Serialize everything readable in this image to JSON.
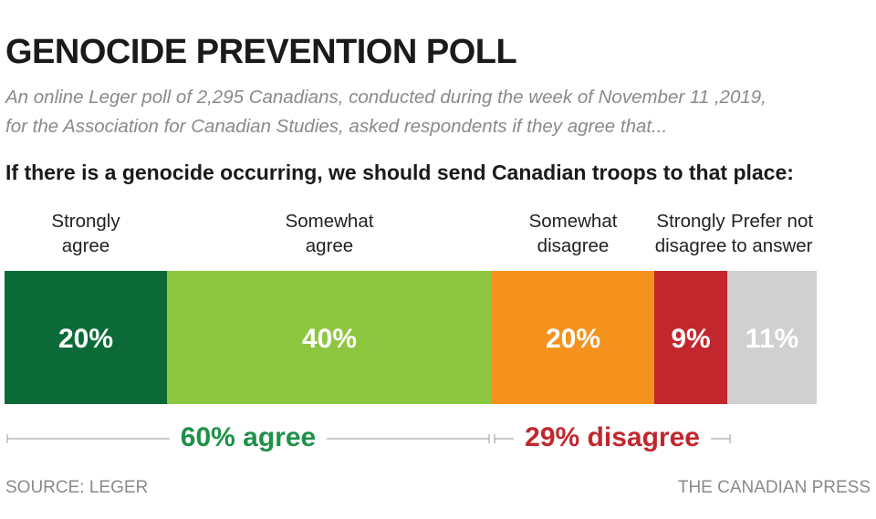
{
  "chart_data": {
    "type": "stacked-bar",
    "title": "GENOCIDE PREVENTION POLL",
    "subtitle": "An online Leger poll of 2,295 Canadians, conducted during the week of November 11 ,2019,\nfor the Association for Canadian Studies, asked respondents if they agree that...",
    "question": "If there is a genocide occurring, we should send Canadian troops to that place:",
    "categories": [
      "Strongly\nagree",
      "Somewhat\nagree",
      "Somewhat\ndisagree",
      "Strongly\ndisagree",
      "Prefer not\nto answer"
    ],
    "values": [
      20,
      40,
      20,
      9,
      11
    ],
    "value_labels": [
      "20%",
      "40%",
      "20%",
      "9%",
      "11%"
    ],
    "colors": [
      "#0b6a37",
      "#8dc63f",
      "#f5921e",
      "#c1272d",
      "#d0d0d0"
    ],
    "xlim": [
      0,
      100
    ],
    "annotations": [
      {
        "text": "60% agree",
        "color": "#1e9148"
      },
      {
        "text": "29% disagree",
        "color": "#c1272d"
      }
    ],
    "source": "SOURCE: LEGER",
    "credit": "THE CANADIAN PRESS"
  }
}
